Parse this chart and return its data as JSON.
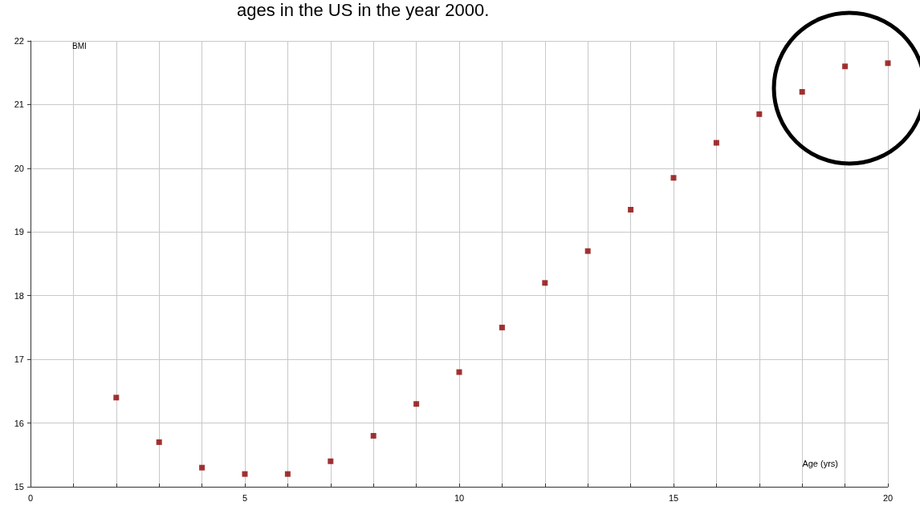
{
  "chart_data": {
    "type": "scatter",
    "title": "ages in the US in the year 2000.",
    "xlabel": "Age (yrs)",
    "ylabel": "BMI",
    "x": [
      2,
      3,
      4,
      5,
      6,
      7,
      8,
      9,
      10,
      11,
      12,
      13,
      14,
      15,
      16,
      17,
      18,
      19,
      20
    ],
    "series": [
      {
        "color": "#8b0000",
        "values": [
          16.4,
          15.7,
          15.3,
          15.2,
          15.2,
          15.4,
          15.8,
          16.3,
          16.8,
          17.5,
          18.2,
          18.7,
          19.35,
          19.85,
          20.4,
          20.85,
          21.2,
          21.6,
          21.65
        ]
      }
    ],
    "xlim": [
      0,
      20
    ],
    "xticks": [
      0,
      {
        "value": 1,
        "label": null
      },
      {
        "value": 2,
        "label": null
      },
      {
        "value": 3,
        "label": null
      },
      {
        "value": 4,
        "label": null
      },
      5,
      {
        "value": 6,
        "label": null
      },
      {
        "value": 7,
        "label": null
      },
      {
        "value": 8,
        "label": null
      },
      {
        "value": 9,
        "label": null
      },
      10,
      {
        "value": 11,
        "label": null
      },
      {
        "value": 12,
        "label": null
      },
      {
        "value": 13,
        "label": null
      },
      {
        "value": 14,
        "label": null
      },
      15,
      {
        "value": 16,
        "label": null
      },
      {
        "value": 17,
        "label": null
      },
      {
        "value": 18,
        "label": null
      },
      {
        "value": 19,
        "label": null
      },
      20
    ],
    "ylim": [
      15,
      22
    ],
    "yticks": [
      15,
      16,
      17,
      18,
      19,
      20,
      21,
      22
    ],
    "grid": true,
    "marker": "square"
  }
}
